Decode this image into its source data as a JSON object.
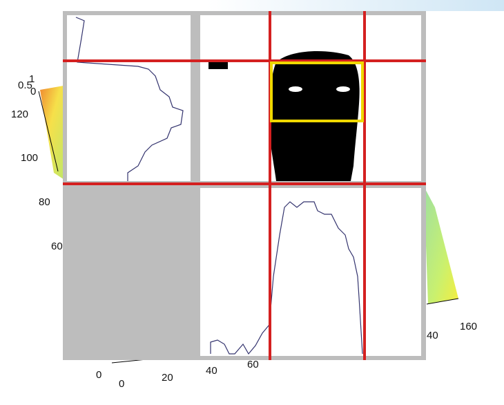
{
  "axis_labels": [
    "0.5",
    "1",
    "0",
    "120",
    "100",
    "80",
    "60",
    "0",
    "0",
    "20",
    "40",
    "60",
    "40",
    "160"
  ]
}
